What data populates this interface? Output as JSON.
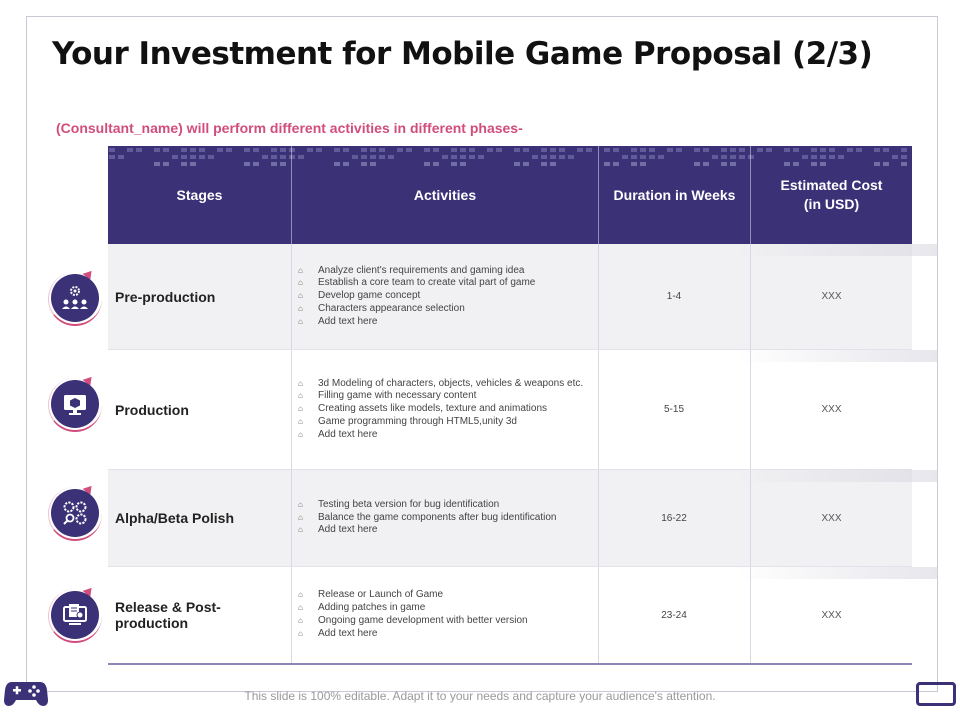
{
  "title": "Your Investment for Mobile Game Proposal (2/3)",
  "subtitle": "(Consultant_name) will perform different activities in different phases-",
  "colors": {
    "accent": "#3b3177",
    "highlight": "#d14d7d"
  },
  "table": {
    "headers": {
      "stages": "Stages",
      "activities": "Activities",
      "duration": "Duration in Weeks",
      "cost_line1": "Estimated Cost",
      "cost_line2": "(in USD)"
    },
    "bullet": "⌂",
    "rows": [
      {
        "stage": "Pre-production",
        "icon": "team-gear-icon",
        "activities": [
          "Analyze client's requirements and gaming idea",
          "Establish a core team to create vital part of game",
          "Develop game concept",
          "Characters appearance selection",
          "Add text here"
        ],
        "duration": "1-4",
        "cost": "XXX"
      },
      {
        "stage": "Production",
        "icon": "monitor-cube-icon",
        "activities": [
          "3d Modeling of characters, objects, vehicles & weapons etc.",
          "Filling game with necessary content",
          "Creating assets like models, texture and animations",
          "Game programming through HTML5,unity 3d",
          "Add text here"
        ],
        "duration": "5-15",
        "cost": "XXX"
      },
      {
        "stage": "Alpha/Beta Polish",
        "icon": "gears-magnifier-icon",
        "activities": [
          "Testing beta version for bug identification",
          "Balance the game components after bug identification",
          "Add text here"
        ],
        "duration": "16-22",
        "cost": "XXX"
      },
      {
        "stage": "Release & Post-production",
        "icon": "monitor-document-icon",
        "activities": [
          "Release or Launch of Game",
          "Adding patches in game",
          "Ongoing game development with better version",
          "Add text here"
        ],
        "duration": "23-24",
        "cost": "XXX"
      }
    ]
  },
  "footer": "This slide is 100% editable. Adapt it to your needs and capture your audience's attention."
}
